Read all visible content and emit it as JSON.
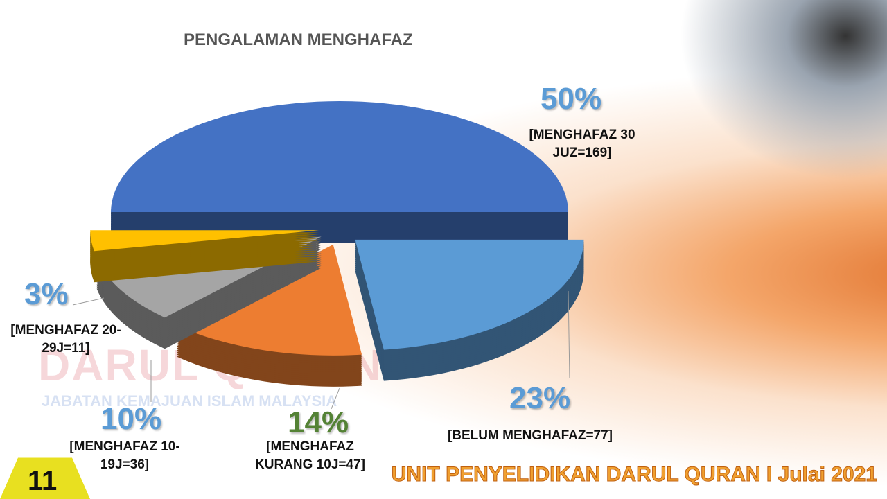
{
  "chart_data": {
    "type": "pie",
    "title": "PENGALAMAN  MENGHAFAZ",
    "categories": [
      "[MENGHAFAZ 30 JUZ=169]",
      "[BELUM MENGHAFAZ=77]",
      "[MENGHAFAZ KURANG 10J=47]",
      "[MENGHAFAZ 10-19J=36]",
      "[MENGHAFAZ 20-29J=11]"
    ],
    "values": [
      50,
      23,
      14,
      10,
      3
    ],
    "value_labels": [
      "50%",
      "23%",
      "14%",
      "10%",
      "3%"
    ],
    "colors": [
      "#4472c4",
      "#5b9bd5",
      "#ed7d31",
      "#a5a5a5",
      "#ffc000"
    ]
  },
  "watermark": {
    "name": "DARUL QURAN",
    "agency": "JABATAN KEMAJUAN ISLAM MALAYSIA"
  },
  "footer": "UNIT PENYELIDIKAN  DARUL QURAN I Julai 2021",
  "slide_number": "11"
}
